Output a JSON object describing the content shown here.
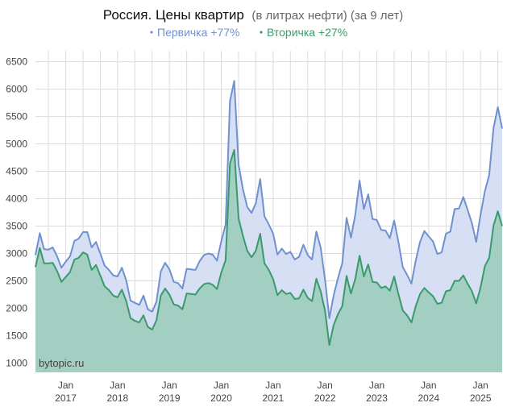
{
  "chart_data": {
    "type": "area",
    "title": "Россия. Цены квартир",
    "subtitle": "(в литрах нефти) (за 9 лет)",
    "watermark": "bytopic.ru",
    "ylim": [
      830,
      6700
    ],
    "yticks": [
      1000,
      1500,
      2000,
      2500,
      3000,
      3500,
      4000,
      4500,
      5000,
      5500,
      6000,
      6500
    ],
    "xticks": [
      {
        "x": "2017-01",
        "line1": "Jan",
        "line2": "2017"
      },
      {
        "x": "2018-01",
        "line1": "Jan",
        "line2": "2018"
      },
      {
        "x": "2019-01",
        "line1": "Jan",
        "line2": "2019"
      },
      {
        "x": "2020-01",
        "line1": "Jan",
        "line2": "2020"
      },
      {
        "x": "2021-01",
        "line1": "Jan",
        "line2": "2021"
      },
      {
        "x": "2022-01",
        "line1": "Jan",
        "line2": "2022"
      },
      {
        "x": "2023-01",
        "line1": "Jan",
        "line2": "2023"
      },
      {
        "x": "2024-01",
        "line1": "Jan",
        "line2": "2024"
      },
      {
        "x": "2025-01",
        "line1": "Jan",
        "line2": "2025"
      }
    ],
    "grid": true,
    "legend_position": "top",
    "x": [
      "2016-06",
      "2016-07",
      "2016-08",
      "2016-09",
      "2016-10",
      "2016-11",
      "2016-12",
      "2017-01",
      "2017-02",
      "2017-03",
      "2017-04",
      "2017-05",
      "2017-06",
      "2017-07",
      "2017-08",
      "2017-09",
      "2017-10",
      "2017-11",
      "2017-12",
      "2018-01",
      "2018-02",
      "2018-03",
      "2018-04",
      "2018-05",
      "2018-06",
      "2018-07",
      "2018-08",
      "2018-09",
      "2018-10",
      "2018-11",
      "2018-12",
      "2019-01",
      "2019-02",
      "2019-03",
      "2019-04",
      "2019-05",
      "2019-06",
      "2019-07",
      "2019-08",
      "2019-09",
      "2019-10",
      "2019-11",
      "2019-12",
      "2020-01",
      "2020-02",
      "2020-03",
      "2020-04",
      "2020-05",
      "2020-06",
      "2020-07",
      "2020-08",
      "2020-09",
      "2020-10",
      "2020-11",
      "2020-12",
      "2021-01",
      "2021-02",
      "2021-03",
      "2021-04",
      "2021-05",
      "2021-06",
      "2021-07",
      "2021-08",
      "2021-09",
      "2021-10",
      "2021-11",
      "2021-12",
      "2022-01",
      "2022-02",
      "2022-03",
      "2022-04",
      "2022-05",
      "2022-06",
      "2022-07",
      "2022-08",
      "2022-09",
      "2022-10",
      "2022-11",
      "2022-12",
      "2023-01",
      "2023-02",
      "2023-03",
      "2023-04",
      "2023-05",
      "2023-06",
      "2023-07",
      "2023-08",
      "2023-09",
      "2023-10",
      "2023-11",
      "2023-12",
      "2024-01",
      "2024-02",
      "2024-03",
      "2024-04",
      "2024-05",
      "2024-06",
      "2024-07",
      "2024-08",
      "2024-09",
      "2024-10",
      "2024-11",
      "2024-12",
      "2025-01",
      "2025-02",
      "2025-03",
      "2025-04",
      "2025-05",
      "2025-06"
    ],
    "series": [
      {
        "name": "Первичка",
        "legend": "Первичка +77%",
        "line_color": "#7091cf",
        "fill_color": "#d4ddf3",
        "values": [
          2970,
          3370,
          3080,
          3070,
          3110,
          2950,
          2740,
          2850,
          2950,
          3230,
          3270,
          3390,
          3390,
          3110,
          3210,
          3000,
          2780,
          2700,
          2600,
          2580,
          2740,
          2510,
          2140,
          2100,
          2060,
          2230,
          1980,
          1940,
          2120,
          2670,
          2830,
          2710,
          2480,
          2460,
          2360,
          2720,
          2710,
          2700,
          2860,
          2970,
          3000,
          2980,
          2870,
          3220,
          3530,
          5780,
          6150,
          4620,
          4180,
          3850,
          3740,
          3920,
          4360,
          3680,
          3530,
          3360,
          2980,
          3090,
          2990,
          3030,
          2890,
          2940,
          3160,
          2970,
          2890,
          3400,
          3110,
          2530,
          1820,
          2230,
          2550,
          2820,
          3650,
          3290,
          3700,
          4330,
          3810,
          4080,
          3630,
          3610,
          3430,
          3420,
          3280,
          3600,
          3210,
          2750,
          2610,
          2450,
          2870,
          3210,
          3410,
          3310,
          3220,
          2990,
          3020,
          3360,
          3400,
          3810,
          3820,
          4030,
          3800,
          3550,
          3210,
          3710,
          4140,
          4430,
          5290,
          5670,
          5280
        ]
      },
      {
        "name": "Вторичка",
        "legend": "Вторичка +27%",
        "line_color": "#3a9a6c",
        "fill_color": "#a3cfc3",
        "values": [
          2750,
          3100,
          2820,
          2820,
          2830,
          2680,
          2480,
          2570,
          2660,
          2890,
          2920,
          3020,
          2980,
          2700,
          2790,
          2600,
          2400,
          2330,
          2230,
          2200,
          2340,
          2130,
          1820,
          1770,
          1740,
          1870,
          1660,
          1610,
          1780,
          2230,
          2360,
          2250,
          2070,
          2050,
          1980,
          2270,
          2260,
          2250,
          2360,
          2440,
          2460,
          2430,
          2350,
          2650,
          2880,
          4640,
          4890,
          3640,
          3330,
          3050,
          2930,
          3050,
          3360,
          2820,
          2700,
          2530,
          2240,
          2330,
          2260,
          2280,
          2170,
          2180,
          2340,
          2190,
          2130,
          2540,
          2310,
          1960,
          1330,
          1690,
          1890,
          2040,
          2590,
          2270,
          2530,
          2960,
          2580,
          2800,
          2480,
          2470,
          2370,
          2400,
          2320,
          2580,
          2260,
          1960,
          1870,
          1740,
          2040,
          2260,
          2370,
          2290,
          2220,
          2080,
          2100,
          2310,
          2330,
          2500,
          2500,
          2600,
          2450,
          2310,
          2090,
          2380,
          2770,
          2920,
          3510,
          3770,
          3500
        ]
      }
    ]
  }
}
